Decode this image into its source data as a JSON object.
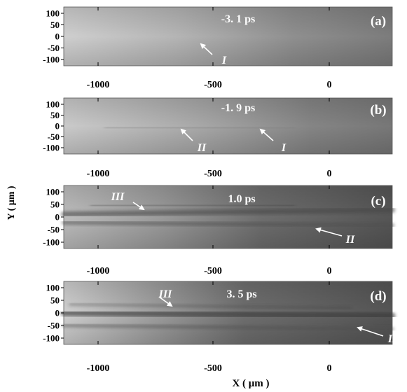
{
  "figure": {
    "y_axis_label": "Y ( μm )",
    "x_axis_label": "X ( μm )",
    "y_ticks": [
      "100",
      "50",
      "0",
      "-50",
      "-100"
    ],
    "x_ticks": [
      "-1000",
      "-500",
      "0"
    ]
  },
  "panels": [
    {
      "label": "(a)",
      "time": "-3. 1 ps",
      "annotations": [
        {
          "text": "I"
        }
      ],
      "style": "light"
    },
    {
      "label": "(b)",
      "time": "-1. 9 ps",
      "annotations": [
        {
          "text": "II"
        },
        {
          "text": "I"
        }
      ],
      "style": "light"
    },
    {
      "label": "(c)",
      "time": "1.0 ps",
      "annotations": [
        {
          "text": "III"
        },
        {
          "text": "II"
        }
      ],
      "style": "dark"
    },
    {
      "label": "(d)",
      "time": "3. 5 ps",
      "annotations": [
        {
          "text": "III"
        },
        {
          "text": "II"
        }
      ],
      "style": "dark"
    }
  ],
  "colors": {
    "text_on_image": "#ffffff",
    "axis_text": "#000000"
  }
}
